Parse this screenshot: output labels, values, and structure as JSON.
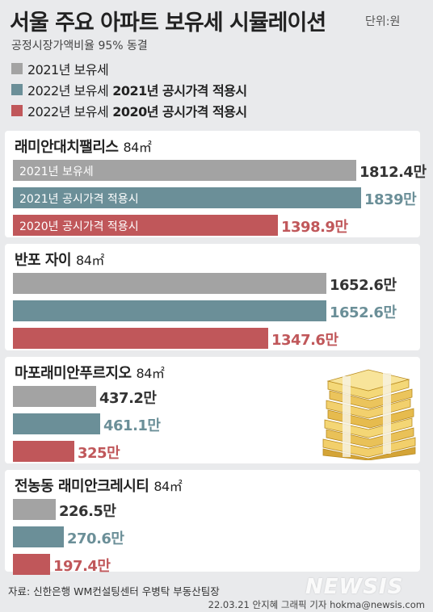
{
  "header": {
    "title": "서울 주요 아파트 보유세 시뮬레이션",
    "unit": "단위:원",
    "subtitle": "공정시장가액비율 95% 동결"
  },
  "legend": [
    {
      "prefix": "2021년 보유세",
      "bold": "",
      "color": "#a3a3a3"
    },
    {
      "prefix": "2022년 보유세",
      "bold": "2021년 공시가격 적용시",
      "color": "#6b8f98"
    },
    {
      "prefix": "2022년 보유세",
      "bold": "2020년 공시가격 적용시",
      "color": "#c0575a"
    }
  ],
  "colors": {
    "gray": "#a3a3a3",
    "teal": "#6b8f98",
    "red": "#c0575a"
  },
  "chart_data": {
    "type": "bar",
    "orientation": "horizontal",
    "title": "서울 주요 아파트 보유세 시뮬레이션",
    "series_names": [
      "2021년 보유세",
      "2022년 보유세 2021년 공시가격 적용시",
      "2022년 보유세 2020년 공시가격 적용시"
    ],
    "groups": [
      {
        "name": "래미안대치팰리스",
        "area": "84㎡",
        "values": [
          1812.4,
          1839,
          1398.9
        ],
        "labels": [
          "1812.4만",
          "1839만",
          "1398.9만"
        ],
        "bar_texts": [
          "2021년 보유세",
          "2021년 공시가격 적용시",
          "2020년 공시가격 적용시"
        ]
      },
      {
        "name": "반포 자이",
        "area": "84㎡",
        "values": [
          1652.6,
          1652.6,
          1347.6
        ],
        "labels": [
          "1652.6만",
          "1652.6만",
          "1347.6만"
        ],
        "bar_texts": [
          "",
          "",
          ""
        ]
      },
      {
        "name": "마포래미안푸르지오",
        "area": "84㎡",
        "values": [
          437.2,
          461.1,
          325
        ],
        "labels": [
          "437.2만",
          "461.1만",
          "325만"
        ],
        "bar_texts": [
          "",
          "",
          ""
        ]
      },
      {
        "name": "전농동 래미안크레시티",
        "area": "84㎡",
        "values": [
          226.5,
          270.6,
          197.4
        ],
        "labels": [
          "226.5만",
          "270.6만",
          "197.4만"
        ],
        "bar_texts": [
          "",
          "",
          ""
        ]
      }
    ]
  },
  "footer": {
    "source": "자료: 신한은행 WM컨설팅센터 우병탁 부동산팀장",
    "credit": "22.03.21 안지혜 그래픽 기자 hokma@newsis.com",
    "watermark": "NEWSIS"
  },
  "decoration": {
    "icon": "money-stack-icon"
  }
}
